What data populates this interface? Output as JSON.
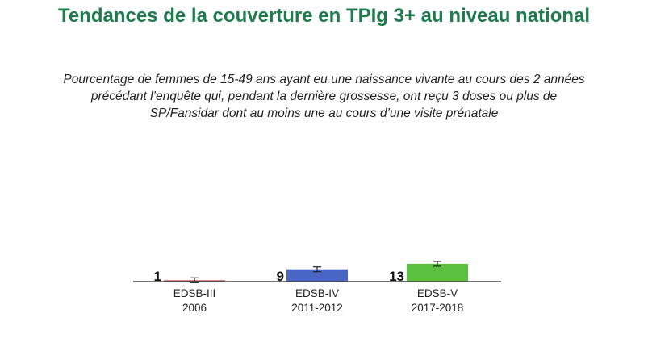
{
  "title": "Tendances de la couverture en TPIg 3+ au niveau national",
  "subtitle": "Pourcentage de femmes de 15-49 ans ayant eu une naissance vivante au cours des 2 années précédant l’enquête qui, pendant la dernière grossesse, ont reçu 3 doses ou plus de SP/Fansidar dont au moins une au cours d’une visite prénatale",
  "chart_data": {
    "type": "bar",
    "categories": [
      {
        "line1": "EDSB-III",
        "line2": "2006"
      },
      {
        "line1": "EDSB-IV",
        "line2": "2011-2012"
      },
      {
        "line1": "EDSB-V",
        "line2": "2017-2018"
      }
    ],
    "values": [
      1,
      9,
      13
    ],
    "value_labels": [
      "1",
      "9",
      "13"
    ],
    "colors": [
      "#c0504d",
      "#4a66c4",
      "#5bbf3f"
    ],
    "error_bars": true,
    "ylim": [
      0,
      100
    ]
  }
}
